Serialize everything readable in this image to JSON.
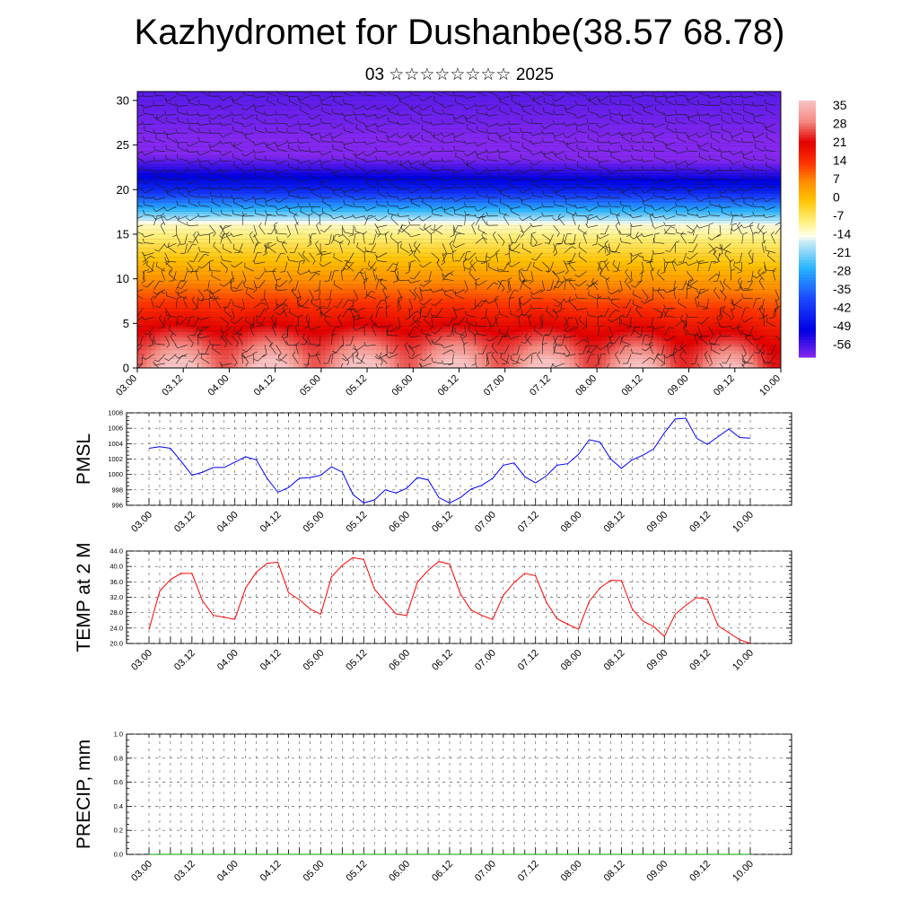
{
  "title": "Kazhydromet for Dushanbe(38.57 68.78)",
  "subtitle": "03 ☆☆☆☆☆☆☆☆ 2025",
  "time_labels": [
    "03.00",
    "03.12",
    "04.00",
    "04.12",
    "05.00",
    "05.12",
    "06.00",
    "06.12",
    "07.00",
    "07.12",
    "08.00",
    "08.12",
    "09.00",
    "09.12",
    "10.00"
  ],
  "chart_data": [
    {
      "type": "heatmap",
      "name": "height-time temperature cross-section with wind barbs",
      "x_ticks": [
        "03.00",
        "03.12",
        "04.00",
        "04.12",
        "05.00",
        "05.12",
        "06.00",
        "06.12",
        "07.00",
        "07.12",
        "08.00",
        "08.12",
        "09.00",
        "09.12",
        "10.00"
      ],
      "y_ticks": [
        "0",
        "5",
        "10",
        "15",
        "20",
        "25",
        "30"
      ],
      "ylim": [
        0,
        31
      ],
      "colorbar_labels": [
        "35",
        "28",
        "21",
        "14",
        "7",
        "0",
        "-7",
        "-14",
        "-21",
        "-28",
        "-35",
        "-42",
        "-49",
        "-56"
      ],
      "colorbar_range": [
        -60,
        38
      ],
      "colorbar_stops": [
        {
          "v": 38,
          "color": "#f9c4c4"
        },
        {
          "v": 30,
          "color": "#f48a82"
        },
        {
          "v": 22,
          "color": "#e20000"
        },
        {
          "v": 14,
          "color": "#ff3300"
        },
        {
          "v": 7,
          "color": "#ff8c00"
        },
        {
          "v": 0,
          "color": "#ffc200"
        },
        {
          "v": -8,
          "color": "#fff07a"
        },
        {
          "v": -14,
          "color": "#fffff0"
        },
        {
          "v": -16,
          "color": "#c8ecf4"
        },
        {
          "v": -26,
          "color": "#28b4ff"
        },
        {
          "v": -38,
          "color": "#1a46ff"
        },
        {
          "v": -50,
          "color": "#0000e0"
        },
        {
          "v": -60,
          "color": "#8428f0"
        }
      ]
    },
    {
      "type": "line",
      "ylabel": "PMSL",
      "y_ticks": [
        "996",
        "998",
        "1000",
        "1002",
        "1004",
        "1006",
        "1008"
      ],
      "ylim": [
        996,
        1008
      ],
      "x_ticks": [
        "03.00",
        "03.12",
        "04.00",
        "04.12",
        "05.00",
        "05.12",
        "06.00",
        "06.12",
        "07.00",
        "07.12",
        "08.00",
        "08.12",
        "09.00",
        "09.12",
        "10.00"
      ],
      "color": "#0000ff",
      "series": [
        {
          "values": [
            1003.4,
            1003.6,
            1003.4,
            1001.7,
            999.9,
            1000.3,
            1000.9,
            1000.9,
            1001.6,
            1002.3,
            1001.9,
            999.5,
            997.7,
            998.3,
            999.5,
            999.6,
            999.9,
            1001.0,
            1000.3,
            997.4,
            996.3,
            996.7,
            998.0,
            997.6,
            998.2,
            999.6,
            999.3,
            997.0,
            996.3,
            997.0,
            998.1,
            998.6,
            999.5,
            1001.2,
            1001.5,
            999.7,
            998.9,
            999.8,
            1001.2,
            1001.4,
            1002.6,
            1004.5,
            1004.2,
            1002.0,
            1000.8,
            1001.9,
            1002.5,
            1003.3,
            1005.4,
            1007.2,
            1007.3,
            1004.7,
            1003.9,
            1004.9,
            1005.9,
            1004.8,
            1004.7
          ]
        }
      ]
    },
    {
      "type": "line",
      "ylabel": "TEMP at 2 M",
      "y_ticks": [
        "20.0",
        "24.0",
        "28.0",
        "32.0",
        "36.0",
        "40.0",
        "44.0"
      ],
      "ylim": [
        20,
        44
      ],
      "x_ticks": [
        "03.00",
        "03.12",
        "04.00",
        "04.12",
        "05.00",
        "05.12",
        "06.00",
        "06.12",
        "07.00",
        "07.12",
        "08.00",
        "08.12",
        "09.00",
        "09.12",
        "10.00"
      ],
      "color": "#ff0000",
      "series": [
        {
          "values": [
            23.6,
            33.6,
            36.6,
            38.2,
            38.2,
            31.0,
            27.3,
            26.8,
            26.3,
            34.4,
            38.5,
            40.8,
            41.1,
            33.2,
            31.4,
            29.0,
            27.6,
            37.3,
            40.3,
            42.3,
            41.8,
            34.1,
            30.8,
            27.7,
            27.3,
            35.9,
            39.0,
            41.3,
            40.6,
            32.9,
            28.7,
            27.3,
            26.2,
            32.5,
            35.8,
            38.2,
            37.6,
            30.8,
            26.4,
            25.0,
            23.7,
            30.9,
            34.4,
            36.4,
            36.3,
            29.0,
            25.8,
            24.4,
            21.8,
            27.6,
            29.9,
            31.9,
            31.5,
            24.6,
            22.8,
            21.0,
            20.0
          ]
        }
      ]
    },
    {
      "type": "line",
      "ylabel": "PRECIP, mm",
      "y_ticks": [
        "0.0",
        "0.2",
        "0.4",
        "0.6",
        "0.8",
        "1.0"
      ],
      "ylim": [
        0,
        1
      ],
      "x_ticks": [
        "03.00",
        "03.12",
        "04.00",
        "04.12",
        "05.00",
        "05.12",
        "06.00",
        "06.12",
        "07.00",
        "07.12",
        "08.00",
        "08.12",
        "09.00",
        "09.12",
        "10.00"
      ],
      "color": "#00a000",
      "series": [
        {
          "values": [
            0,
            0,
            0,
            0,
            0,
            0,
            0,
            0,
            0,
            0,
            0,
            0,
            0,
            0,
            0,
            0,
            0,
            0,
            0,
            0,
            0,
            0,
            0,
            0,
            0,
            0,
            0,
            0,
            0,
            0,
            0,
            0,
            0,
            0,
            0,
            0,
            0,
            0,
            0,
            0,
            0,
            0,
            0,
            0,
            0,
            0,
            0,
            0,
            0,
            0,
            0,
            0,
            0,
            0,
            0,
            0,
            0
          ]
        }
      ]
    }
  ]
}
